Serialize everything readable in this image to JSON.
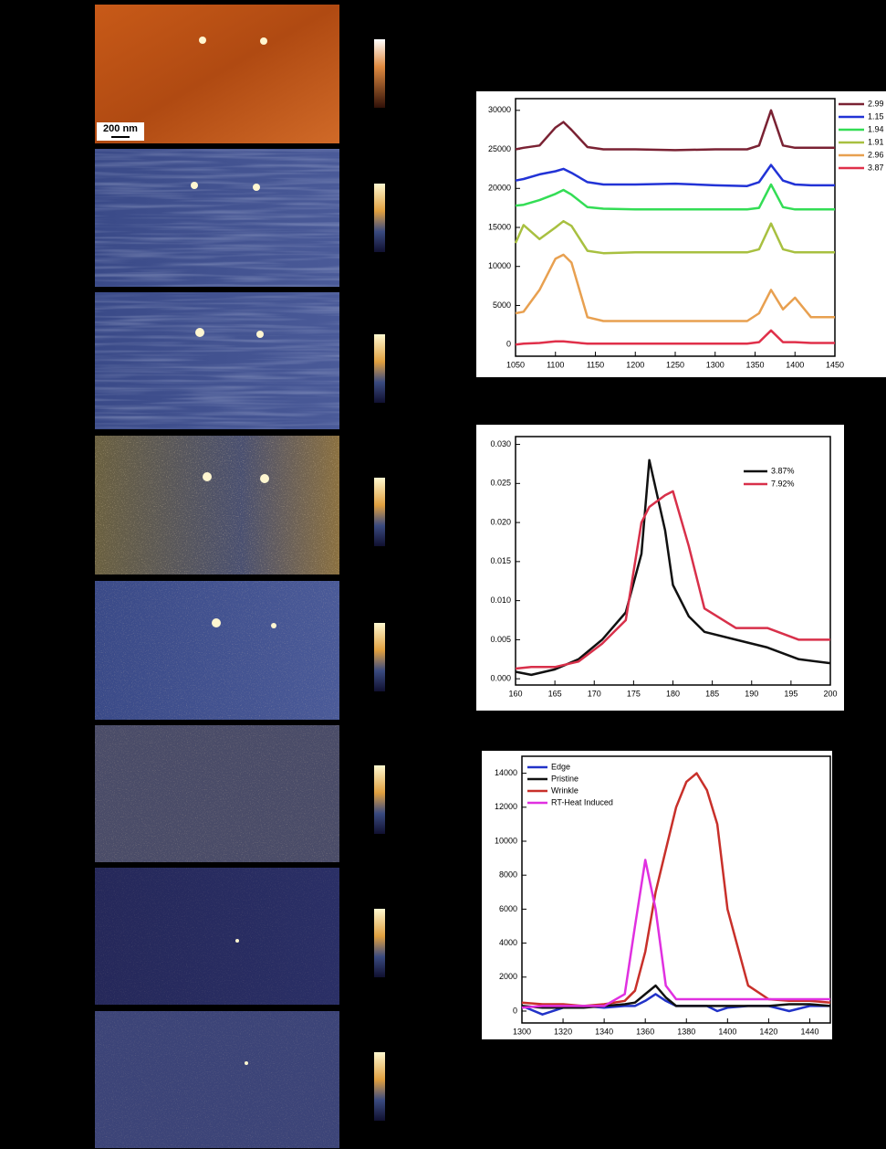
{
  "scale_bar": "200 nm",
  "chart_data": [
    {
      "type": "line",
      "legend": "outside-right",
      "grid": false,
      "x": [
        1050,
        1060,
        1080,
        1100,
        1110,
        1120,
        1140,
        1160,
        1200,
        1250,
        1300,
        1340,
        1355,
        1370,
        1385,
        1400,
        1420,
        1450
      ],
      "xlim": [
        1050,
        1450
      ],
      "xticks": [
        1050,
        1100,
        1150,
        1200,
        1250,
        1300,
        1350,
        1400,
        1450
      ],
      "ylim": [
        -1500,
        31500
      ],
      "yticks": [
        0,
        5000,
        10000,
        15000,
        20000,
        25000,
        30000
      ],
      "series": [
        {
          "name": "2.99",
          "color": "#7a2233",
          "values": [
            25000,
            25200,
            25500,
            27800,
            28500,
            27500,
            25300,
            25000,
            25000,
            24900,
            25000,
            25000,
            25500,
            30000,
            25500,
            25200,
            25200,
            25200
          ]
        },
        {
          "name": "1.15",
          "color": "#2233d6",
          "values": [
            21000,
            21200,
            21800,
            22200,
            22500,
            22000,
            20800,
            20500,
            20500,
            20600,
            20400,
            20300,
            20800,
            23000,
            21000,
            20500,
            20400,
            20400
          ]
        },
        {
          "name": "1.94",
          "color": "#33dd55",
          "values": [
            17800,
            17900,
            18500,
            19300,
            19800,
            19200,
            17600,
            17400,
            17300,
            17300,
            17300,
            17300,
            17500,
            20500,
            17600,
            17300,
            17300,
            17300
          ]
        },
        {
          "name": "1.91",
          "color": "#a8c040",
          "values": [
            13000,
            15300,
            13500,
            15000,
            15800,
            15200,
            12000,
            11700,
            11800,
            11800,
            11800,
            11800,
            12200,
            15500,
            12200,
            11800,
            11800,
            11800
          ]
        },
        {
          "name": "2.96",
          "color": "#e8a050",
          "values": [
            4000,
            4200,
            7000,
            11000,
            11500,
            10500,
            3500,
            3000,
            3000,
            3000,
            3000,
            3000,
            4000,
            7000,
            4500,
            6000,
            3500,
            3500
          ]
        },
        {
          "name": "3.87",
          "color": "#e0304a",
          "values": [
            0,
            100,
            200,
            400,
            400,
            300,
            100,
            100,
            100,
            100,
            100,
            100,
            300,
            1800,
            300,
            300,
            200,
            200
          ]
        }
      ]
    },
    {
      "type": "line",
      "legend": "top-right",
      "grid": false,
      "x": [
        160,
        162,
        165,
        168,
        171,
        174,
        176,
        177,
        179,
        180,
        182,
        184,
        188,
        192,
        196,
        200
      ],
      "xlim": [
        160,
        200
      ],
      "xticks": [
        160,
        165,
        170,
        175,
        180,
        185,
        190,
        195,
        200
      ],
      "ylim": [
        -0.0008,
        0.031
      ],
      "yticks": [
        {
          "value": 0,
          "label": "0.000"
        },
        {
          "value": 0.005,
          "label": "0.005"
        },
        {
          "value": 0.01,
          "label": "0.010"
        },
        {
          "value": 0.015,
          "label": "0.015"
        },
        {
          "value": 0.02,
          "label": "0.020"
        },
        {
          "value": 0.025,
          "label": "0.025"
        },
        {
          "value": 0.03,
          "label": "0.030"
        }
      ],
      "series": [
        {
          "name": "3.87%",
          "color": "#111111",
          "values": [
            0.0009,
            0.0005,
            0.0012,
            0.0025,
            0.005,
            0.0085,
            0.016,
            0.028,
            0.019,
            0.012,
            0.008,
            0.006,
            0.005,
            0.004,
            0.0025,
            0.002
          ]
        },
        {
          "name": "7.92%",
          "color": "#d8304a",
          "values": [
            0.0013,
            0.0015,
            0.0015,
            0.0022,
            0.0045,
            0.0075,
            0.02,
            0.022,
            0.0235,
            0.024,
            0.017,
            0.009,
            0.0065,
            0.0065,
            0.005,
            0.005
          ]
        }
      ]
    },
    {
      "type": "line",
      "legend": "top-left",
      "grid": false,
      "x": [
        1300,
        1310,
        1320,
        1330,
        1340,
        1350,
        1355,
        1360,
        1365,
        1370,
        1375,
        1380,
        1385,
        1390,
        1395,
        1400,
        1410,
        1420,
        1430,
        1440,
        1450
      ],
      "xlim": [
        1300,
        1450
      ],
      "xticks": [
        1300,
        1320,
        1340,
        1360,
        1380,
        1400,
        1420,
        1440
      ],
      "ylim": [
        -700,
        15000
      ],
      "yticks": [
        0,
        2000,
        4000,
        6000,
        8000,
        10000,
        12000,
        14000
      ],
      "series": [
        {
          "name": "Edge",
          "color": "#2233c8",
          "values": [
            300,
            -200,
            200,
            300,
            200,
            300,
            300,
            600,
            1000,
            600,
            300,
            300,
            300,
            300,
            0,
            200,
            300,
            300,
            0,
            300,
            300
          ]
        },
        {
          "name": "Pristine",
          "color": "#111111",
          "values": [
            300,
            200,
            200,
            200,
            300,
            400,
            500,
            1000,
            1500,
            800,
            300,
            300,
            300,
            300,
            300,
            300,
            300,
            300,
            400,
            400,
            300
          ]
        },
        {
          "name": "Wrinkle",
          "color": "#c8302a",
          "values": [
            500,
            400,
            400,
            300,
            400,
            600,
            1200,
            3500,
            7000,
            9500,
            12000,
            13500,
            14000,
            13000,
            11000,
            6000,
            1500,
            700,
            600,
            600,
            500
          ]
        },
        {
          "name": "RT-Heat Induced",
          "color": "#e030e0",
          "values": [
            200,
            300,
            300,
            300,
            300,
            1000,
            5000,
            8900,
            6000,
            1500,
            700,
            700,
            700,
            700,
            700,
            700,
            700,
            700,
            700,
            700,
            700
          ]
        }
      ]
    }
  ]
}
